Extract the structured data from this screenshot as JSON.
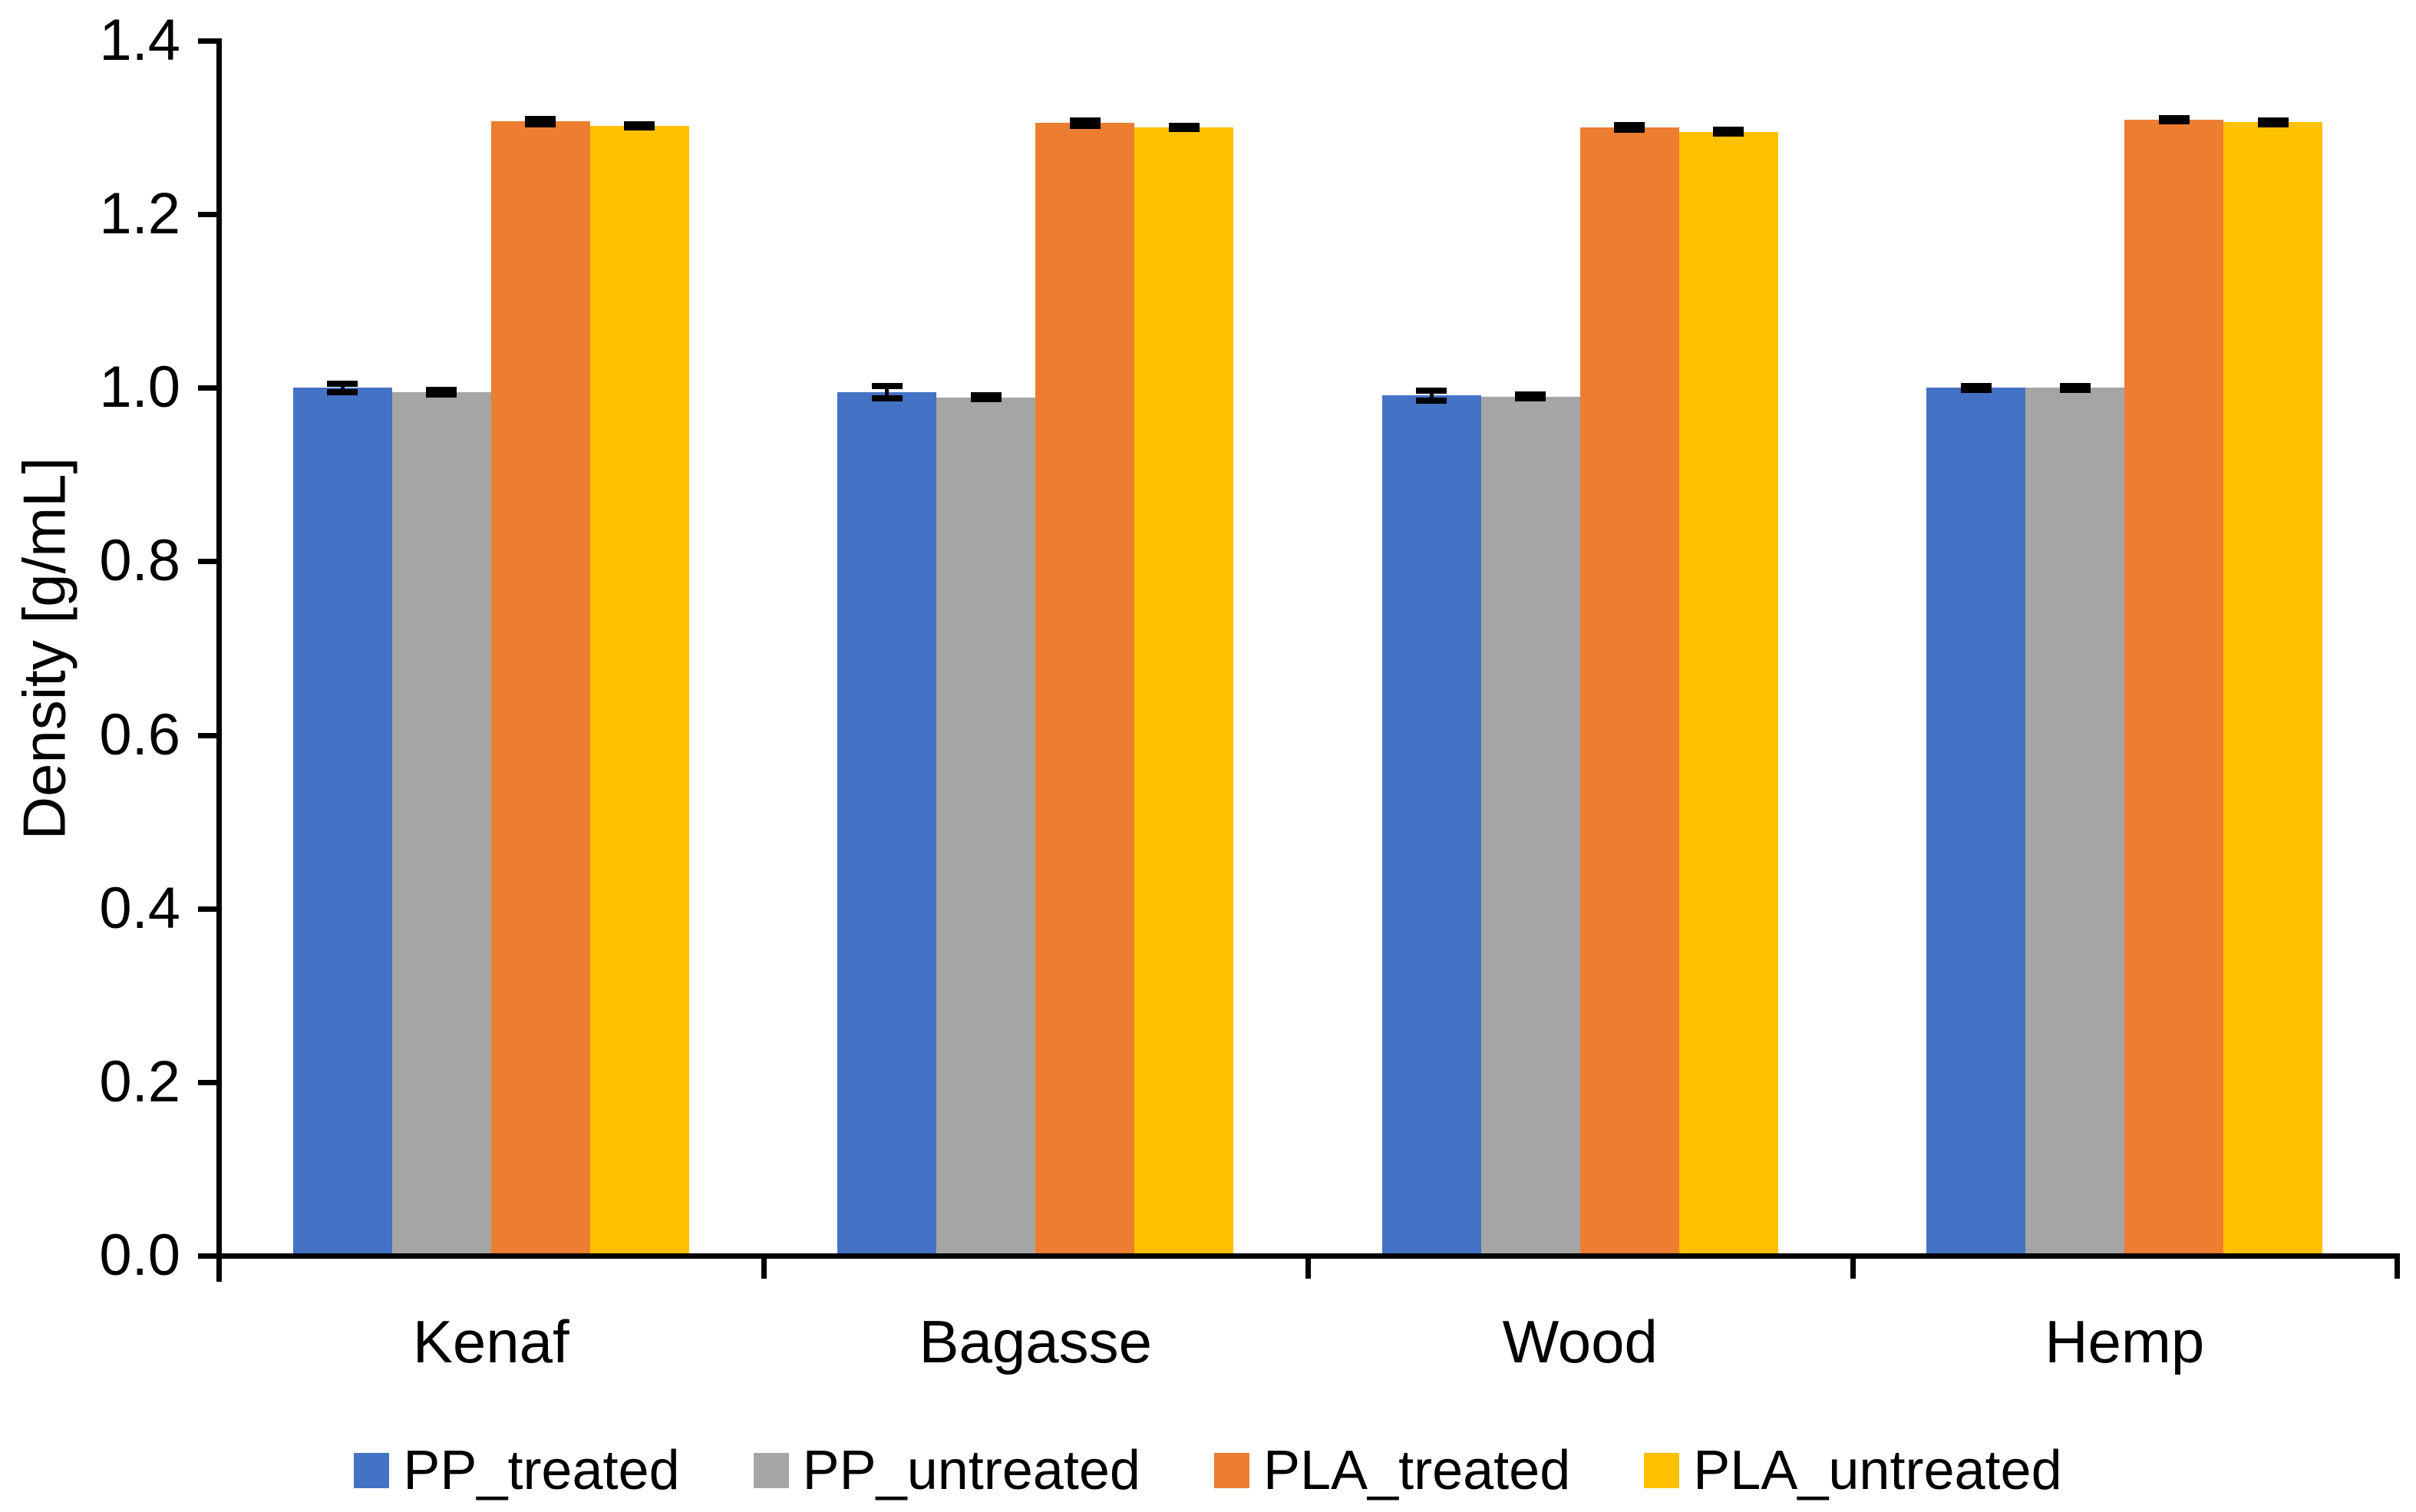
{
  "chart_data": {
    "type": "bar",
    "title": "",
    "xlabel": "",
    "ylabel": "Density [g/mL]",
    "ylim": [
      0.0,
      1.4
    ],
    "ytick_step": 0.2,
    "ytick_labels": [
      "0.0",
      "0.2",
      "0.4",
      "0.6",
      "0.8",
      "1.0",
      "1.2",
      "1.4"
    ],
    "grid": false,
    "legend_position": "bottom",
    "error_bars": true,
    "axis_color": "#000000",
    "error_bar_color": "#000000",
    "categories": [
      "Kenaf",
      "Bagasse",
      "Wood",
      "Hemp"
    ],
    "series": [
      {
        "name": "PP_treated",
        "color": "#4472C4",
        "values": [
          1.0,
          0.995,
          0.991,
          1.0
        ],
        "errors": [
          0.005,
          0.007,
          0.006,
          0.002
        ]
      },
      {
        "name": "PP_untreated",
        "color": "#A5A5A5",
        "values": [
          0.995,
          0.989,
          0.99,
          1.0
        ],
        "errors": [
          0.003,
          0.002,
          0.002,
          0.002
        ]
      },
      {
        "name": "PLA_treated",
        "color": "#ED7D31",
        "values": [
          1.307,
          1.305,
          1.3,
          1.309
        ],
        "errors": [
          0.003,
          0.003,
          0.003,
          0.002
        ]
      },
      {
        "name": "PLA_untreated",
        "color": "#FFC000",
        "values": [
          1.302,
          1.3,
          1.295,
          1.306
        ],
        "errors": [
          0.002,
          0.002,
          0.002,
          0.002
        ]
      }
    ]
  }
}
